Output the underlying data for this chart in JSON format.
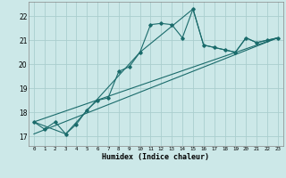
{
  "xlabel": "Humidex (Indice chaleur)",
  "ylabel": "",
  "bg_color": "#cce8e8",
  "grid_color": "#aacece",
  "line_color": "#1a6b6b",
  "xlim": [
    -0.5,
    23.5
  ],
  "ylim": [
    16.6,
    22.6
  ],
  "yticks": [
    17,
    18,
    19,
    20,
    21,
    22
  ],
  "xticks": [
    0,
    1,
    2,
    3,
    4,
    5,
    6,
    7,
    8,
    9,
    10,
    11,
    12,
    13,
    14,
    15,
    16,
    17,
    18,
    19,
    20,
    21,
    22,
    23
  ],
  "line1_x": [
    0,
    1,
    2,
    3,
    4,
    5,
    6,
    7,
    8,
    9,
    10,
    11,
    12,
    13,
    14,
    15,
    16,
    17,
    18,
    19,
    20,
    21,
    22,
    23
  ],
  "line1_y": [
    17.6,
    17.3,
    17.6,
    17.1,
    17.5,
    18.1,
    18.5,
    18.6,
    19.7,
    19.9,
    20.5,
    21.65,
    21.7,
    21.65,
    21.1,
    22.3,
    20.8,
    20.7,
    20.6,
    20.5,
    21.1,
    20.9,
    21.0,
    21.1
  ],
  "line2_x": [
    0,
    3,
    10,
    15,
    16,
    17,
    18,
    19,
    20,
    21,
    22,
    23
  ],
  "line2_y": [
    17.6,
    17.1,
    20.5,
    22.3,
    20.8,
    20.7,
    20.6,
    20.5,
    21.1,
    20.9,
    21.0,
    21.1
  ],
  "line3_x": [
    0,
    23
  ],
  "line3_y": [
    17.6,
    21.1
  ],
  "line4_x": [
    0,
    23
  ],
  "line4_y": [
    17.1,
    21.1
  ]
}
